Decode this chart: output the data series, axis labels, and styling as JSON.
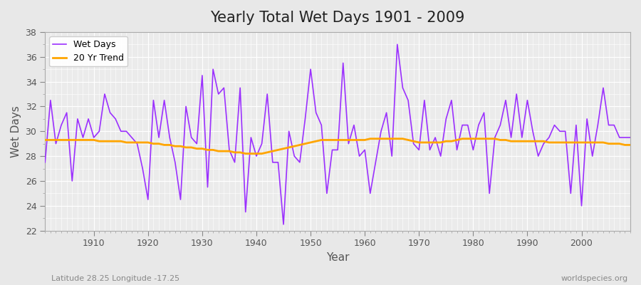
{
  "title": "Yearly Total Wet Days 1901 - 2009",
  "xlabel": "Year",
  "ylabel": "Wet Days",
  "subtitle_left": "Latitude 28.25 Longitude -17.25",
  "subtitle_right": "worldspecies.org",
  "ylim": [
    22,
    38
  ],
  "xlim": [
    1901,
    2009
  ],
  "yticks": [
    22,
    24,
    26,
    28,
    30,
    32,
    34,
    36,
    38
  ],
  "xticks": [
    1910,
    1920,
    1930,
    1940,
    1950,
    1960,
    1970,
    1980,
    1990,
    2000
  ],
  "wet_days_color": "#9B30FF",
  "trend_color": "#FFA500",
  "background_color": "#E8E8E8",
  "plot_bg_color": "#EBEBEB",
  "legend_wet": "Wet Days",
  "legend_trend": "20 Yr Trend",
  "years": [
    1901,
    1902,
    1903,
    1904,
    1905,
    1906,
    1907,
    1908,
    1909,
    1910,
    1911,
    1912,
    1913,
    1914,
    1915,
    1916,
    1917,
    1918,
    1919,
    1920,
    1921,
    1922,
    1923,
    1924,
    1925,
    1926,
    1927,
    1928,
    1929,
    1930,
    1931,
    1932,
    1933,
    1934,
    1935,
    1936,
    1937,
    1938,
    1939,
    1940,
    1941,
    1942,
    1943,
    1944,
    1945,
    1946,
    1947,
    1948,
    1949,
    1950,
    1951,
    1952,
    1953,
    1954,
    1955,
    1956,
    1957,
    1958,
    1959,
    1960,
    1961,
    1962,
    1963,
    1964,
    1965,
    1966,
    1967,
    1968,
    1969,
    1970,
    1971,
    1972,
    1973,
    1974,
    1975,
    1976,
    1977,
    1978,
    1979,
    1980,
    1981,
    1982,
    1983,
    1984,
    1985,
    1986,
    1987,
    1988,
    1989,
    1990,
    1991,
    1992,
    1993,
    1994,
    1995,
    1996,
    1997,
    1998,
    1999,
    2000,
    2001,
    2002,
    2003,
    2004,
    2005,
    2006,
    2007,
    2008,
    2009
  ],
  "wet_days": [
    27.5,
    32.5,
    29.0,
    30.5,
    31.5,
    26.0,
    31.0,
    29.5,
    31.0,
    29.5,
    30.0,
    33.0,
    31.5,
    31.0,
    30.0,
    30.0,
    29.5,
    29.0,
    27.0,
    24.5,
    32.5,
    29.5,
    32.5,
    29.5,
    27.5,
    24.5,
    32.0,
    29.5,
    29.0,
    34.5,
    25.5,
    35.0,
    33.0,
    33.5,
    28.5,
    27.5,
    33.5,
    23.5,
    29.5,
    28.0,
    29.0,
    33.0,
    27.5,
    27.5,
    22.5,
    30.0,
    28.0,
    27.5,
    31.0,
    35.0,
    31.5,
    30.5,
    25.0,
    28.5,
    28.5,
    35.5,
    29.0,
    30.5,
    28.0,
    28.5,
    25.0,
    27.5,
    30.0,
    31.5,
    28.0,
    37.0,
    33.5,
    32.5,
    29.0,
    28.5,
    32.5,
    28.5,
    29.5,
    28.0,
    31.0,
    32.5,
    28.5,
    30.5,
    30.5,
    28.5,
    30.5,
    31.5,
    25.0,
    29.5,
    30.5,
    32.5,
    29.5,
    33.0,
    29.5,
    32.5,
    30.0,
    28.0,
    29.0,
    29.5,
    30.5,
    30.0,
    30.0,
    25.0,
    30.5,
    24.0,
    31.0,
    28.0,
    30.5,
    33.5,
    30.5,
    30.5,
    29.5,
    29.5,
    29.5
  ],
  "trend": [
    29.3,
    29.3,
    29.3,
    29.3,
    29.3,
    29.3,
    29.3,
    29.3,
    29.3,
    29.3,
    29.2,
    29.2,
    29.2,
    29.2,
    29.2,
    29.1,
    29.1,
    29.1,
    29.1,
    29.1,
    29.0,
    29.0,
    28.9,
    28.9,
    28.8,
    28.8,
    28.7,
    28.7,
    28.6,
    28.6,
    28.5,
    28.5,
    28.4,
    28.4,
    28.4,
    28.3,
    28.3,
    28.2,
    28.2,
    28.2,
    28.2,
    28.3,
    28.4,
    28.5,
    28.6,
    28.7,
    28.8,
    28.9,
    29.0,
    29.1,
    29.2,
    29.3,
    29.3,
    29.3,
    29.3,
    29.3,
    29.3,
    29.3,
    29.3,
    29.3,
    29.4,
    29.4,
    29.4,
    29.4,
    29.4,
    29.4,
    29.4,
    29.3,
    29.2,
    29.1,
    29.1,
    29.1,
    29.1,
    29.1,
    29.2,
    29.2,
    29.3,
    29.4,
    29.4,
    29.4,
    29.4,
    29.4,
    29.4,
    29.4,
    29.3,
    29.3,
    29.2,
    29.2,
    29.2,
    29.2,
    29.2,
    29.2,
    29.2,
    29.1,
    29.1,
    29.1,
    29.1,
    29.1,
    29.1,
    29.1,
    29.1,
    29.1,
    29.1,
    29.1,
    29.0,
    29.0,
    29.0,
    28.9,
    28.9
  ]
}
